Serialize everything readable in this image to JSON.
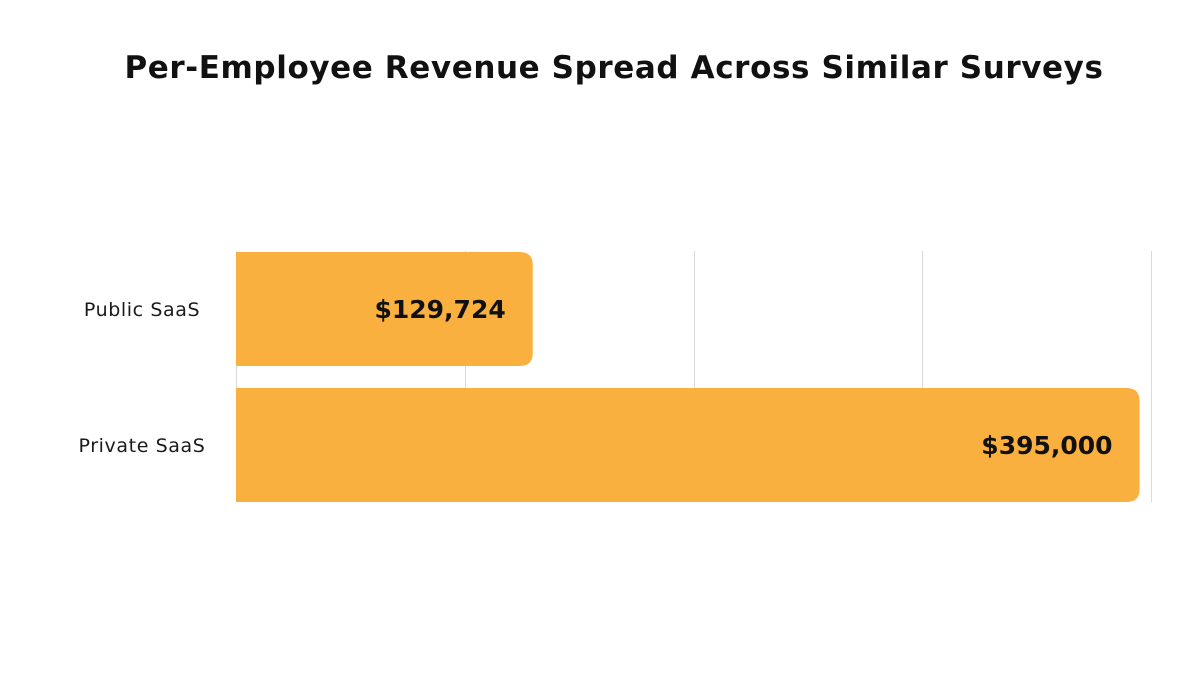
{
  "chart_data": {
    "type": "bar",
    "orientation": "horizontal",
    "title": "Per-Employee Revenue Spread Across Similar Surveys",
    "categories": [
      "Public SaaS",
      "Private SaaS"
    ],
    "values": [
      129724,
      395000
    ],
    "value_labels": [
      "$129,724",
      "$395,000"
    ],
    "xlim": [
      0,
      400000
    ],
    "grid": true,
    "xlabel": "",
    "ylabel": "",
    "bar_color": "#F9B03F"
  }
}
